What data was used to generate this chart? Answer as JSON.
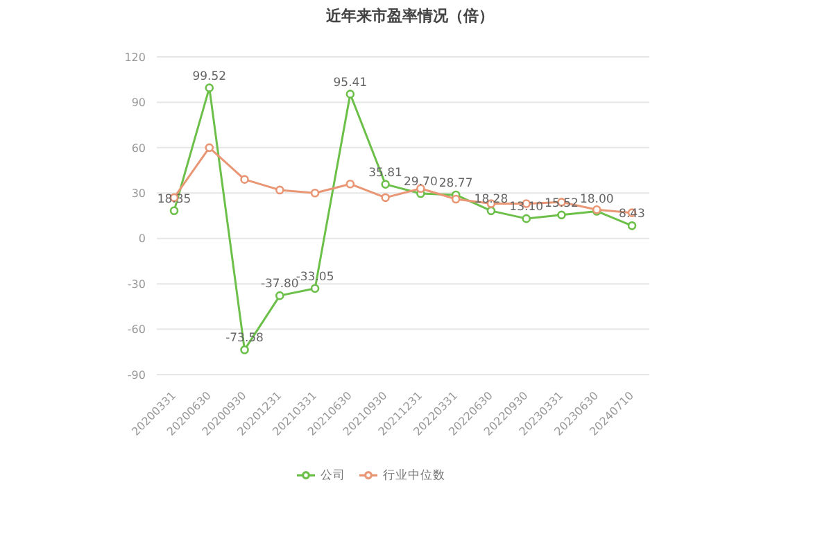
{
  "chart_data": {
    "type": "line",
    "title": "近年来市盈率情况（倍）",
    "categories": [
      "20200331",
      "20200630",
      "20200930",
      "20201231",
      "20210331",
      "20210630",
      "20210930",
      "20211231",
      "20220331",
      "20220630",
      "20220930",
      "20230331",
      "20230630",
      "20240710"
    ],
    "series": [
      {
        "name": "公司",
        "color": "#6cc04a",
        "values": [
          18.35,
          99.52,
          -73.58,
          -37.8,
          -33.05,
          95.41,
          35.81,
          29.7,
          28.77,
          18.28,
          13.1,
          15.52,
          18.0,
          8.43
        ],
        "value_labels": [
          "18.35",
          "99.52",
          "-73.58",
          "-37.80",
          "-33.05",
          "95.41",
          "35.81",
          "29.70",
          "28.77",
          "18.28",
          "13.10",
          "15.52",
          "18.00",
          "8.43"
        ]
      },
      {
        "name": "行业中位数",
        "color": "#e99675",
        "values": [
          27,
          60,
          39,
          32,
          30,
          36,
          27,
          33,
          26,
          23,
          23,
          24,
          19,
          17
        ]
      }
    ],
    "ylim": [
      -90,
      120
    ],
    "yticks": [
      -90,
      -60,
      -30,
      0,
      30,
      60,
      90,
      120
    ],
    "grid": "y",
    "legend": "bottom",
    "marker": "circle"
  }
}
